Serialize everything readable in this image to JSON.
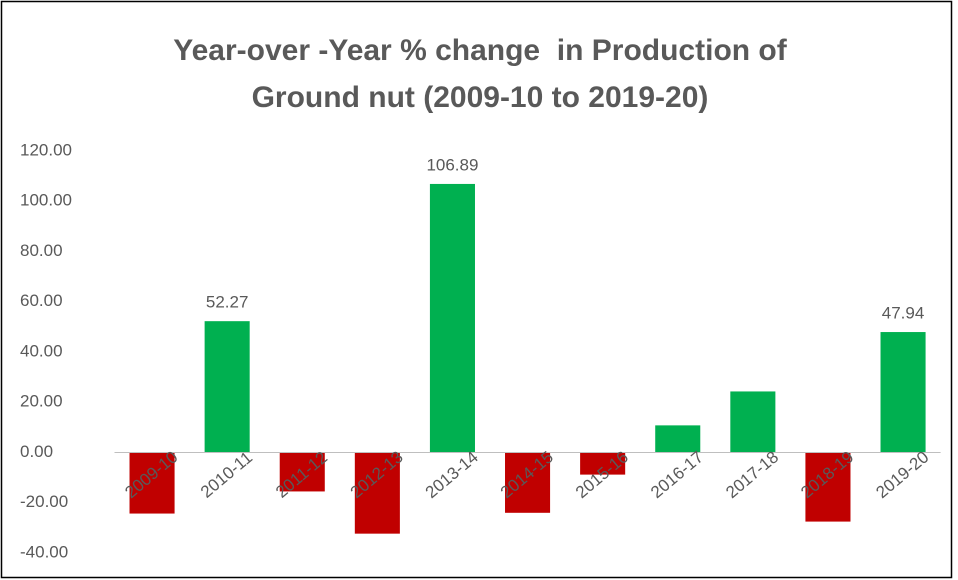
{
  "chart_data": {
    "type": "bar",
    "title": [
      "Year-over -Year % change  in Production of",
      "Ground nut (2009-10 to 2019-20)"
    ],
    "categories": [
      "2009-10",
      "2010-11",
      "2011-12",
      "2012-13",
      "2013-14",
      "2014-15",
      "2015-16",
      "2016-17",
      "2017-18",
      "2018-19",
      "2019-20"
    ],
    "values": [
      -24.3,
      52.27,
      -15.5,
      -32.3,
      106.89,
      -24,
      -8.8,
      10.8,
      24.3,
      -27.5,
      47.94
    ],
    "value_labels": [
      null,
      "52.27",
      null,
      null,
      "106.89",
      null,
      null,
      null,
      null,
      null,
      "47.94"
    ],
    "color": "#00b050",
    "negative_color": "#c00000",
    "ylim": [
      -40,
      120
    ],
    "yticks": [
      {
        "value": -40,
        "label": "-40.00"
      },
      {
        "value": -20,
        "label": "-20.00"
      },
      {
        "value": 0,
        "label": "0.00"
      },
      {
        "value": 20,
        "label": "20.00"
      },
      {
        "value": 40,
        "label": "40.00"
      },
      {
        "value": 60,
        "label": "60.00"
      },
      {
        "value": 80,
        "label": "80.00"
      },
      {
        "value": 100,
        "label": "100.00"
      },
      {
        "value": 120,
        "label": "120.00"
      }
    ],
    "grid": false
  }
}
